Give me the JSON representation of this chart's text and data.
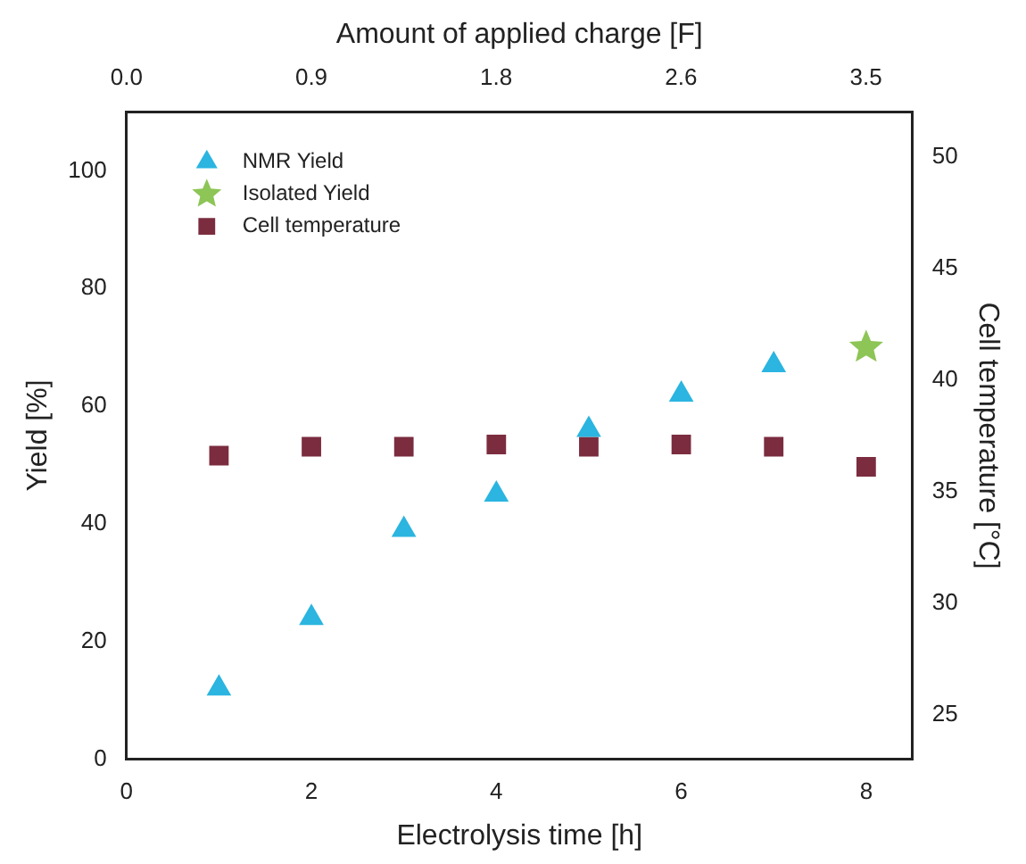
{
  "chart_data": {
    "type": "scatter",
    "xlabel": "Electrolysis time [h]",
    "ylabel": "Yield [%]",
    "y2label": "Cell temperature [°C]",
    "x2label": "Amount of applied charge [F]",
    "xlim": [
      0,
      8.5
    ],
    "xticks": [
      0,
      2,
      4,
      6,
      8
    ],
    "x2lim": [
      0,
      3.72
    ],
    "x2ticks": [
      {
        "value": 0,
        "label": "0.0"
      },
      {
        "value": 0.875,
        "label": "0.9"
      },
      {
        "value": 1.75,
        "label": "1.8"
      },
      {
        "value": 2.625,
        "label": "2.6"
      },
      {
        "value": 3.5,
        "label": "3.5"
      }
    ],
    "ylim": [
      0,
      110
    ],
    "yticks": [
      0,
      20,
      40,
      60,
      80,
      100
    ],
    "y2lim": [
      23,
      52
    ],
    "y2ticks": [
      25,
      30,
      35,
      40,
      45,
      50
    ],
    "grid": false,
    "legend": "top left",
    "series": [
      {
        "name": "NMR Yield",
        "color": "#2bb5e0",
        "marker": "triangle",
        "x": [
          1,
          2,
          3,
          4,
          5,
          6,
          7
        ],
        "values": [
          12,
          24,
          39,
          45,
          56,
          62,
          67
        ]
      },
      {
        "name": "Isolated Yield",
        "color": "#8dc556",
        "marker": "star",
        "x": [
          8
        ],
        "values": [
          70
        ]
      },
      {
        "name": "Cell temperature",
        "color": "#7b2d3f",
        "marker": "square",
        "axis": "y2",
        "x": [
          1,
          2,
          3,
          4,
          5,
          6,
          7,
          8
        ],
        "values": [
          36.6,
          37.0,
          37.0,
          37.1,
          37.0,
          37.1,
          37.0,
          36.1
        ]
      }
    ]
  }
}
